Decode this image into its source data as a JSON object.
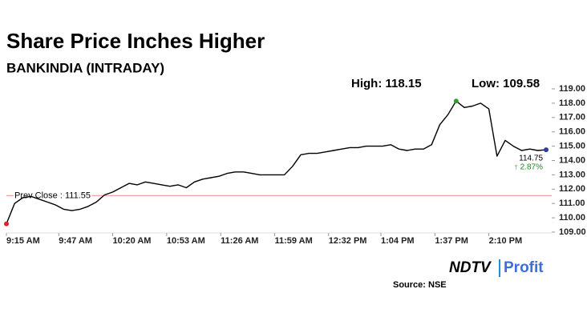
{
  "chart_data": {
    "type": "line",
    "title": "Share Price Inches Higher",
    "subtitle": "BANKINDIA (INTRADAY)",
    "x": [
      "9:15 AM",
      "9:20 AM",
      "9:25 AM",
      "9:30 AM",
      "9:35 AM",
      "9:40 AM",
      "9:45 AM",
      "9:50 AM",
      "9:55 AM",
      "10:00 AM",
      "10:05 AM",
      "10:10 AM",
      "10:15 AM",
      "10:20 AM",
      "10:25 AM",
      "10:30 AM",
      "10:35 AM",
      "10:40 AM",
      "10:45 AM",
      "10:50 AM",
      "10:55 AM",
      "11:00 AM",
      "11:05 AM",
      "11:10 AM",
      "11:15 AM",
      "11:20 AM",
      "11:25 AM",
      "11:30 AM",
      "11:35 AM",
      "11:40 AM",
      "11:45 AM",
      "11:50 AM",
      "11:55 AM",
      "12:00 PM",
      "12:05 PM",
      "12:10 PM",
      "12:15 PM",
      "12:20 PM",
      "12:25 PM",
      "12:30 PM",
      "12:35 PM",
      "12:40 PM",
      "12:45 PM",
      "12:50 PM",
      "12:55 PM",
      "1:00 PM",
      "1:05 PM",
      "1:10 PM",
      "1:15 PM",
      "1:20 PM",
      "1:25 PM",
      "1:30 PM",
      "1:35 PM",
      "1:40 PM",
      "1:45 PM",
      "1:50 PM",
      "1:55 PM",
      "2:00 PM",
      "2:05 PM",
      "2:10 PM",
      "2:15 PM",
      "2:20 PM",
      "2:25 PM",
      "2:30 PM",
      "2:35 PM",
      "2:40 PM",
      "2:45 PM"
    ],
    "values": [
      109.58,
      111.0,
      111.4,
      111.5,
      111.3,
      111.1,
      110.9,
      110.6,
      110.5,
      110.6,
      110.8,
      111.1,
      111.6,
      111.8,
      112.1,
      112.4,
      112.3,
      112.5,
      112.4,
      112.3,
      112.2,
      112.3,
      112.1,
      112.5,
      112.7,
      112.8,
      112.9,
      113.1,
      113.2,
      113.2,
      113.1,
      113.0,
      113.0,
      113.0,
      113.0,
      113.6,
      114.4,
      114.5,
      114.5,
      114.6,
      114.7,
      114.8,
      114.9,
      114.9,
      115.0,
      115.0,
      115.0,
      115.1,
      114.8,
      114.7,
      114.8,
      114.8,
      115.1,
      116.5,
      117.2,
      118.15,
      117.7,
      117.8,
      118.0,
      117.6,
      114.3,
      115.4,
      115.0,
      114.7,
      114.8,
      114.7,
      114.75
    ],
    "color": "#000000",
    "xticks": [
      "9:15 AM",
      "9:47 AM",
      "10:20 AM",
      "10:53 AM",
      "11:26 AM",
      "11:59 AM",
      "12:32 PM",
      "1:04 PM",
      "1:37 PM",
      "2:10 PM"
    ],
    "ylim": [
      109,
      119
    ],
    "yticks": [
      {
        "value": 109,
        "label": "109.00"
      },
      {
        "value": 110,
        "label": "110.00"
      },
      {
        "value": 111,
        "label": "111.00"
      },
      {
        "value": 112,
        "label": "112.00"
      },
      {
        "value": 113,
        "label": "113.00"
      },
      {
        "value": 114,
        "label": "114.00"
      },
      {
        "value": 115,
        "label": "115.00"
      },
      {
        "value": 116,
        "label": "116.00"
      },
      {
        "value": 117,
        "label": "117.00"
      },
      {
        "value": 118,
        "label": "118.00"
      },
      {
        "value": 119,
        "label": "119.00"
      }
    ],
    "high": {
      "value": 118.15,
      "label": "High: 118.15",
      "color": "#2e9e2e"
    },
    "low": {
      "value": 109.58,
      "label": "Low: 109.58",
      "color": "#e0202a"
    },
    "prev_close": {
      "value": 111.55,
      "label": "Prev Close : 111.55",
      "color": "#f2a0a0"
    },
    "last": {
      "value": 114.75,
      "label": "114.75",
      "color": "#2a3fa0"
    },
    "change": {
      "value": 2.87,
      "label": "↑ 2.87%",
      "color": "#1f8a1f"
    },
    "logo": {
      "left": "NDTV",
      "right": "Profit"
    },
    "source": "Source: NSE"
  }
}
